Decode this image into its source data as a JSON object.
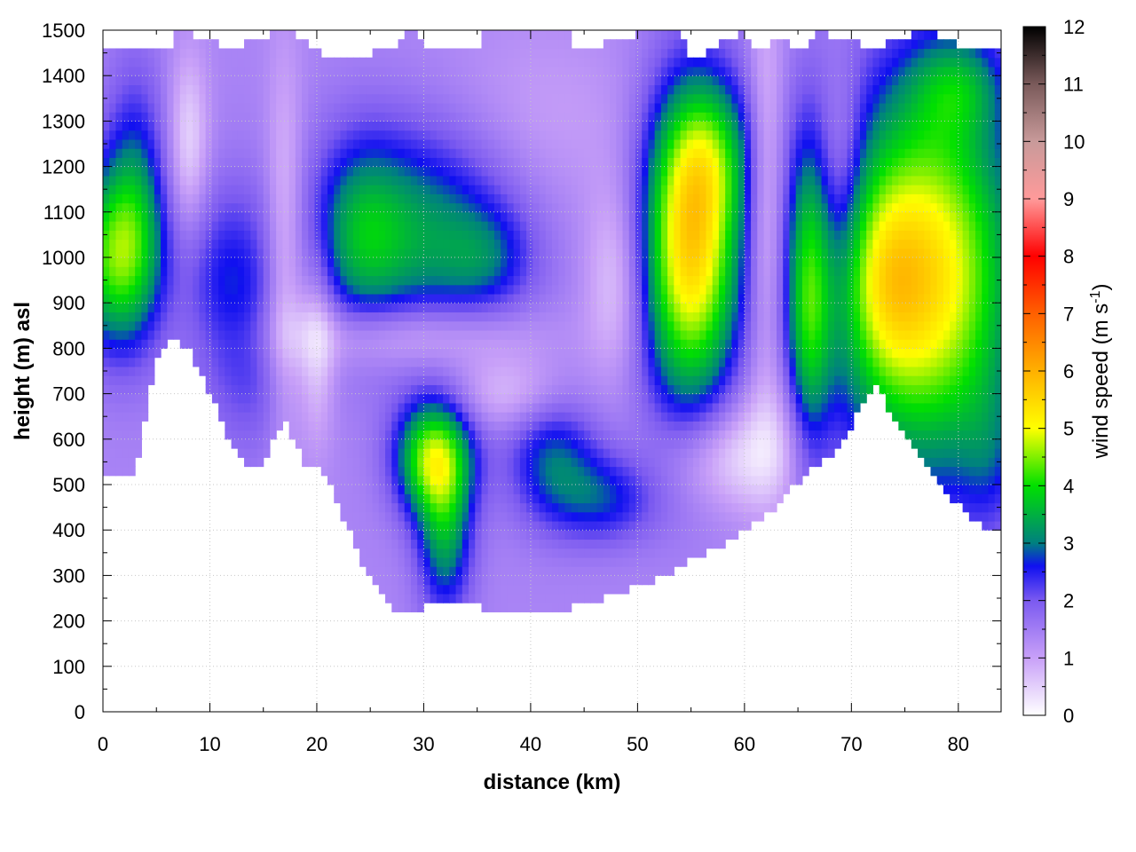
{
  "chart_data": {
    "type": "heatmap",
    "title": "",
    "xlabel": "distance (km)",
    "ylabel": "height (m) asl",
    "colorbar_label": "wind speed (m s",
    "colorbar_label_sup": "-1",
    "colorbar_label_end": ")",
    "xlim": [
      0,
      84
    ],
    "ylim": [
      0,
      1500
    ],
    "clim": [
      0,
      12
    ],
    "x_ticks": [
      0,
      10,
      20,
      30,
      40,
      50,
      60,
      70,
      80
    ],
    "x_tick_labels": [
      "0",
      "10",
      "20",
      "30",
      "40",
      "50",
      "60",
      "70",
      "80"
    ],
    "y_ticks": [
      0,
      100,
      200,
      300,
      400,
      500,
      600,
      700,
      800,
      900,
      1000,
      1100,
      1200,
      1300,
      1400,
      1500
    ],
    "y_tick_labels": [
      "0",
      "100",
      "200",
      "300",
      "400",
      "500",
      "600",
      "700",
      "800",
      "900",
      "1000",
      "1100",
      "1200",
      "1300",
      "1400",
      "1500"
    ],
    "colorbar_ticks": [
      0,
      1,
      2,
      3,
      4,
      5,
      6,
      7,
      8,
      9,
      10,
      11,
      12
    ],
    "colorbar_tick_labels": [
      "0",
      "1",
      "2",
      "3",
      "4",
      "5",
      "6",
      "7",
      "8",
      "9",
      "10",
      "11",
      "12"
    ],
    "colormap": [
      {
        "value": 0,
        "color": "#ffffff"
      },
      {
        "value": 1,
        "color": "#c8a0f8"
      },
      {
        "value": 2,
        "color": "#7b5af0"
      },
      {
        "value": 2.6,
        "color": "#1010f0"
      },
      {
        "value": 3,
        "color": "#008080"
      },
      {
        "value": 4,
        "color": "#00e000"
      },
      {
        "value": 5,
        "color": "#ffff00"
      },
      {
        "value": 6,
        "color": "#ffb000"
      },
      {
        "value": 7,
        "color": "#ff6000"
      },
      {
        "value": 8,
        "color": "#ff0000"
      },
      {
        "value": 9,
        "color": "#ff9a9a"
      },
      {
        "value": 10,
        "color": "#c89a9a"
      },
      {
        "value": 11,
        "color": "#7a5a5a"
      },
      {
        "value": 12,
        "color": "#000000"
      }
    ],
    "grid": true,
    "terrain_height": [
      [
        0,
        520
      ],
      [
        1,
        510
      ],
      [
        2,
        520
      ],
      [
        3,
        515
      ],
      [
        4,
        650
      ],
      [
        5,
        780
      ],
      [
        6,
        820
      ],
      [
        7,
        815
      ],
      [
        8,
        800
      ],
      [
        9,
        750
      ],
      [
        10,
        700
      ],
      [
        11,
        650
      ],
      [
        12,
        590
      ],
      [
        13,
        550
      ],
      [
        14,
        530
      ],
      [
        15,
        550
      ],
      [
        16,
        610
      ],
      [
        17,
        635
      ],
      [
        18,
        590
      ],
      [
        19,
        535
      ],
      [
        20,
        540
      ],
      [
        21,
        520
      ],
      [
        22,
        460
      ],
      [
        23,
        400
      ],
      [
        24,
        340
      ],
      [
        25,
        300
      ],
      [
        26,
        260
      ],
      [
        27,
        225
      ],
      [
        28,
        218
      ],
      [
        29,
        225
      ],
      [
        30,
        232
      ],
      [
        32,
        238
      ],
      [
        34,
        235
      ],
      [
        36,
        228
      ],
      [
        38,
        225
      ],
      [
        40,
        224
      ],
      [
        42,
        222
      ],
      [
        44,
        230
      ],
      [
        46,
        245
      ],
      [
        48,
        260
      ],
      [
        50,
        275
      ],
      [
        52,
        295
      ],
      [
        54,
        320
      ],
      [
        56,
        345
      ],
      [
        58,
        370
      ],
      [
        60,
        400
      ],
      [
        62,
        430
      ],
      [
        64,
        480
      ],
      [
        66,
        525
      ],
      [
        68,
        560
      ],
      [
        70,
        630
      ],
      [
        71,
        680
      ],
      [
        72,
        720
      ],
      [
        73,
        700
      ],
      [
        74,
        640
      ],
      [
        75,
        610
      ],
      [
        76,
        580
      ],
      [
        77,
        540
      ],
      [
        78,
        500
      ],
      [
        79,
        470
      ],
      [
        80,
        455
      ],
      [
        81,
        430
      ],
      [
        82,
        410
      ],
      [
        83,
        400
      ],
      [
        84,
        400
      ]
    ],
    "top_height": [
      [
        0,
        1450
      ],
      [
        6,
        1450
      ],
      [
        7,
        1500
      ],
      [
        12,
        1460
      ],
      [
        17,
        1500
      ],
      [
        22,
        1430
      ],
      [
        27,
        1460
      ],
      [
        29,
        1500
      ],
      [
        30,
        1460
      ],
      [
        35,
        1460
      ],
      [
        35.5,
        1500
      ],
      [
        43.5,
        1500
      ],
      [
        44,
        1460
      ],
      [
        47,
        1470
      ],
      [
        50,
        1490
      ],
      [
        54,
        1500
      ],
      [
        55,
        1430
      ],
      [
        60,
        1500
      ],
      [
        61,
        1450
      ],
      [
        64,
        1490
      ],
      [
        65,
        1450
      ],
      [
        67,
        1495
      ],
      [
        72,
        1460
      ],
      [
        77,
        1500
      ],
      [
        80,
        1470
      ],
      [
        81,
        1455
      ],
      [
        84,
        1460
      ]
    ],
    "background_speed": 1.4,
    "wind_features": [
      {
        "x": 1,
        "y": 1000,
        "sx": 3,
        "sy": 140,
        "peak": 2.6
      },
      {
        "x": 3,
        "y": 1150,
        "sx": 2,
        "sy": 200,
        "peak": 1.2
      },
      {
        "x": 8,
        "y": 1250,
        "sx": 1.3,
        "sy": 140,
        "peak": -1.0
      },
      {
        "x": 12,
        "y": 950,
        "sx": 3,
        "sy": 150,
        "peak": 1.2
      },
      {
        "x": 17,
        "y": 1000,
        "sx": 1.2,
        "sy": 300,
        "peak": -0.9
      },
      {
        "x": 20,
        "y": 800,
        "sx": 1.2,
        "sy": 150,
        "peak": -0.9
      },
      {
        "x": 14,
        "y": 700,
        "sx": 3,
        "sy": 120,
        "peak": 0.5
      },
      {
        "x": 24,
        "y": 1050,
        "sx": 3,
        "sy": 150,
        "peak": 1.3
      },
      {
        "x": 30,
        "y": 1060,
        "sx": 6,
        "sy": 170,
        "peak": 1.8
      },
      {
        "x": 36,
        "y": 1000,
        "sx": 3,
        "sy": 80,
        "peak": 0.8
      },
      {
        "x": 31,
        "y": 560,
        "sx": 2.5,
        "sy": 90,
        "peak": 3.2
      },
      {
        "x": 32,
        "y": 380,
        "sx": 1.8,
        "sy": 120,
        "peak": 1.8
      },
      {
        "x": 42,
        "y": 560,
        "sx": 3,
        "sy": 100,
        "peak": 1.4
      },
      {
        "x": 47,
        "y": 470,
        "sx": 3.5,
        "sy": 70,
        "peak": 1.2
      },
      {
        "x": 28,
        "y": 830,
        "sx": 8,
        "sy": 55,
        "peak": -1.0
      },
      {
        "x": 38,
        "y": 700,
        "sx": 4,
        "sy": 60,
        "peak": -0.8
      },
      {
        "x": 48,
        "y": 950,
        "sx": 2,
        "sy": 150,
        "peak": -0.9
      },
      {
        "x": 55,
        "y": 1020,
        "sx": 3.2,
        "sy": 240,
        "peak": 4.1
      },
      {
        "x": 57,
        "y": 1230,
        "sx": 3,
        "sy": 120,
        "peak": 1.3
      },
      {
        "x": 62,
        "y": 1150,
        "sx": 1.2,
        "sy": 300,
        "peak": -1.0
      },
      {
        "x": 66,
        "y": 900,
        "sx": 1.5,
        "sy": 250,
        "peak": 2.2
      },
      {
        "x": 69,
        "y": 1200,
        "sx": 1.5,
        "sy": 150,
        "peak": -0.8
      },
      {
        "x": 77,
        "y": 960,
        "sx": 6,
        "sy": 300,
        "peak": 4.0
      },
      {
        "x": 73,
        "y": 940,
        "sx": 2.5,
        "sy": 150,
        "peak": 1.0
      },
      {
        "x": 80,
        "y": 1380,
        "sx": 3,
        "sy": 80,
        "peak": 1.2
      },
      {
        "x": 83,
        "y": 560,
        "sx": 2,
        "sy": 120,
        "peak": 0.6
      },
      {
        "x": 58,
        "y": 560,
        "sx": 4,
        "sy": 80,
        "peak": -0.9
      },
      {
        "x": 63,
        "y": 600,
        "sx": 3,
        "sy": 120,
        "peak": -0.7
      },
      {
        "x": 40,
        "y": 1300,
        "sx": 8,
        "sy": 150,
        "peak": -0.4
      }
    ]
  }
}
